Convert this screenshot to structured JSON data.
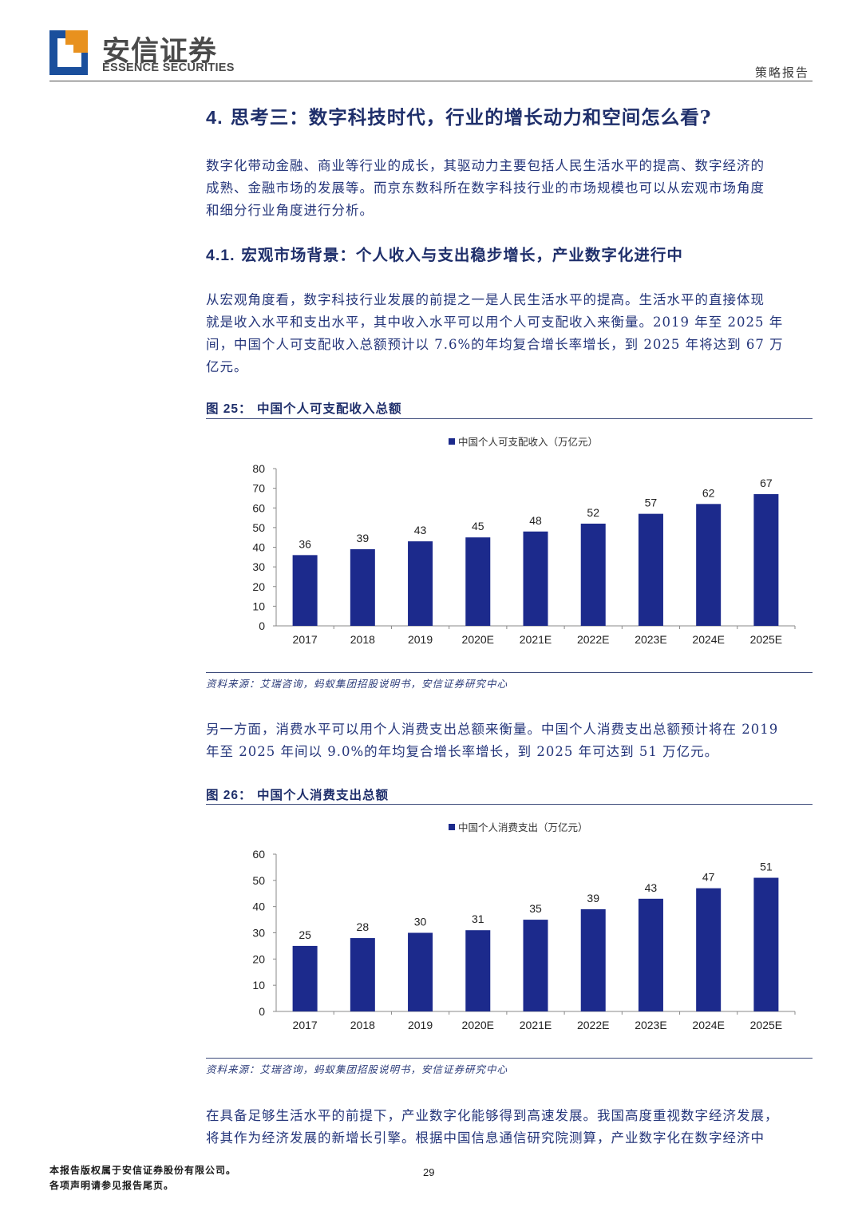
{
  "header": {
    "brand_cn": "安信证券",
    "brand_en": "ESSENCE SECURITIES",
    "doc_type": "策略报告",
    "colors": {
      "logo_blue": "#1a4f9c",
      "logo_orange": "#e8911e"
    }
  },
  "section": {
    "number": "4.",
    "title": "思考三：数字科技时代，行业的增长动力和空间怎么看?",
    "intro": [
      "数字化带动金融、商业等行业的成长，其驱动力主要包括人民生活水平的提高、数字经济的",
      "成熟、金融市场的发展等。而京东数科所在数字科技行业的市场规模也可以从宏观市场角度",
      "和细分行业角度进行分析。"
    ]
  },
  "subsection": {
    "number": "4.1.",
    "title": "宏观市场背景：个人收入与支出稳步增长，产业数字化进行中",
    "para1": [
      "从宏观角度看，数字科技行业发展的前提之一是人民生活水平的提高。生活水平的直接体现",
      "就是收入水平和支出水平，其中收入水平可以用个人可支配收入来衡量。2019 年至 2025 年",
      "间，中国个人可支配收入总额预计以 7.6%的年均复合增长率增长，到 2025 年将达到 67 万",
      "亿元。"
    ],
    "para2": [
      "另一方面，消费水平可以用个人消费支出总额来衡量。中国个人消费支出总额预计将在 2019",
      "年至 2025 年间以 9.0%的年均复合增长率增长，到 2025 年可达到 51 万亿元。"
    ],
    "para3": [
      "在具备足够生活水平的前提下，产业数字化能够得到高速发展。我国高度重视数字经济发展，",
      "将其作为经济发展的新增长引擎。根据中国信息通信研究院测算，产业数字化在数字经济中"
    ]
  },
  "figures": [
    {
      "label": "图 25：",
      "title": "中国个人可支配收入总额",
      "source": "资料来源：艾瑞咨询，蚂蚁集团招股说明书，安信证券研究中心"
    },
    {
      "label": "图 26：",
      "title": "中国个人消费支出总额",
      "source": "资料来源：艾瑞咨询，蚂蚁集团招股说明书，安信证券研究中心"
    }
  ],
  "chart_data": [
    {
      "type": "bar",
      "categories": [
        "2017",
        "2018",
        "2019",
        "2020E",
        "2021E",
        "2022E",
        "2023E",
        "2024E",
        "2025E"
      ],
      "series": [
        {
          "name": "中国个人可支配收入（万亿元）",
          "values": [
            36,
            39,
            43,
            45,
            48,
            52,
            57,
            62,
            67
          ]
        }
      ],
      "ylim": [
        0,
        80
      ],
      "yticks": [
        0,
        10,
        20,
        30,
        40,
        50,
        60,
        70,
        80
      ],
      "legend": "top-center",
      "grid": false,
      "color": "#1c2a8c"
    },
    {
      "type": "bar",
      "categories": [
        "2017",
        "2018",
        "2019",
        "2020E",
        "2021E",
        "2022E",
        "2023E",
        "2024E",
        "2025E"
      ],
      "series": [
        {
          "name": "中国个人消费支出（万亿元）",
          "values": [
            25,
            28,
            30,
            31,
            35,
            39,
            43,
            47,
            51
          ]
        }
      ],
      "ylim": [
        0,
        60
      ],
      "yticks": [
        0,
        10,
        20,
        30,
        40,
        50,
        60
      ],
      "legend": "top-center",
      "grid": false,
      "color": "#1c2a8c"
    }
  ],
  "footer": {
    "copyright": "本报告版权属于安信证券股份有限公司。",
    "disclaimer": "各项声明请参见报告尾页。",
    "page": "29"
  }
}
